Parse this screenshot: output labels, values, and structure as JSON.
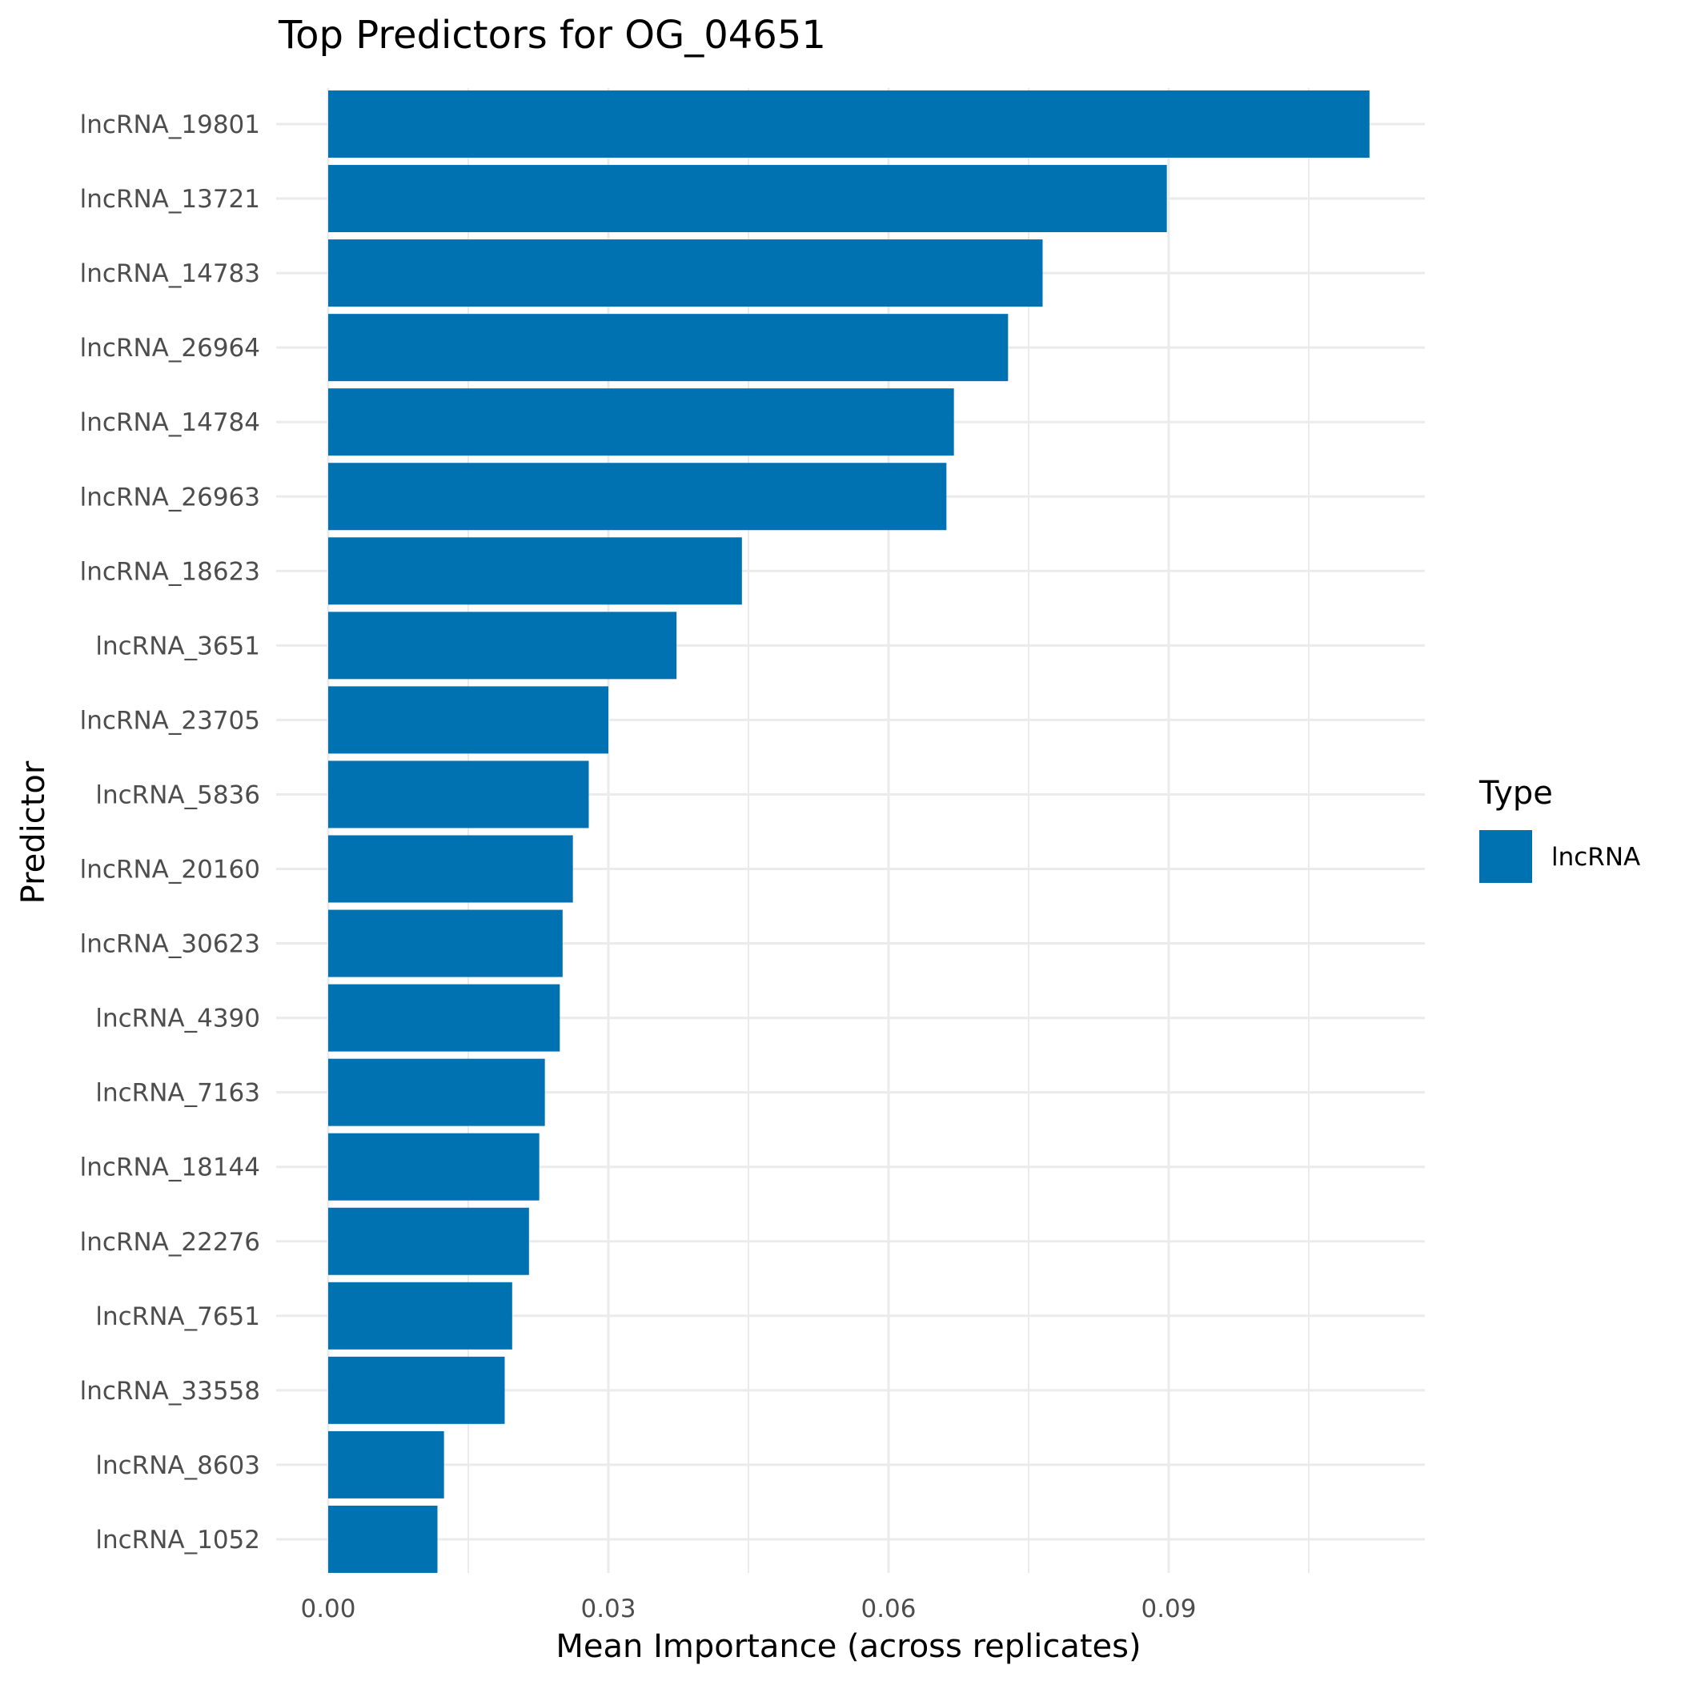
{
  "chart_data": {
    "type": "bar",
    "orientation": "horizontal",
    "title": "Top Predictors for OG_04651",
    "xlabel": "Mean Importance (across replicates)",
    "ylabel": "Predictor",
    "xlim": [
      0,
      0.117
    ],
    "x_ticks": [
      "0.00",
      "0.03",
      "0.06",
      "0.09"
    ],
    "x_tick_values": [
      0,
      0.03,
      0.06,
      0.09
    ],
    "grid": true,
    "legend_position": "right",
    "categories": [
      "lncRNA_19801",
      "lncRNA_13721",
      "lncRNA_14783",
      "lncRNA_26964",
      "lncRNA_14784",
      "lncRNA_26963",
      "lncRNA_18623",
      "lncRNA_3651",
      "lncRNA_23705",
      "lncRNA_5836",
      "lncRNA_20160",
      "lncRNA_30623",
      "lncRNA_4390",
      "lncRNA_7163",
      "lncRNA_18144",
      "lncRNA_22276",
      "lncRNA_7651",
      "lncRNA_33558",
      "lncRNA_8603",
      "lncRNA_1052"
    ],
    "series": [
      {
        "name": "lncRNA",
        "color": "#0072B2",
        "values": [
          0.1115,
          0.0898,
          0.0765,
          0.0728,
          0.067,
          0.0662,
          0.0443,
          0.0373,
          0.03,
          0.0279,
          0.0262,
          0.0251,
          0.0248,
          0.0232,
          0.0226,
          0.0215,
          0.0197,
          0.0189,
          0.0124,
          0.0117
        ]
      }
    ],
    "legend": {
      "title": "Type",
      "entries": [
        {
          "label": "lncRNA",
          "color": "#0072B2"
        }
      ]
    }
  }
}
